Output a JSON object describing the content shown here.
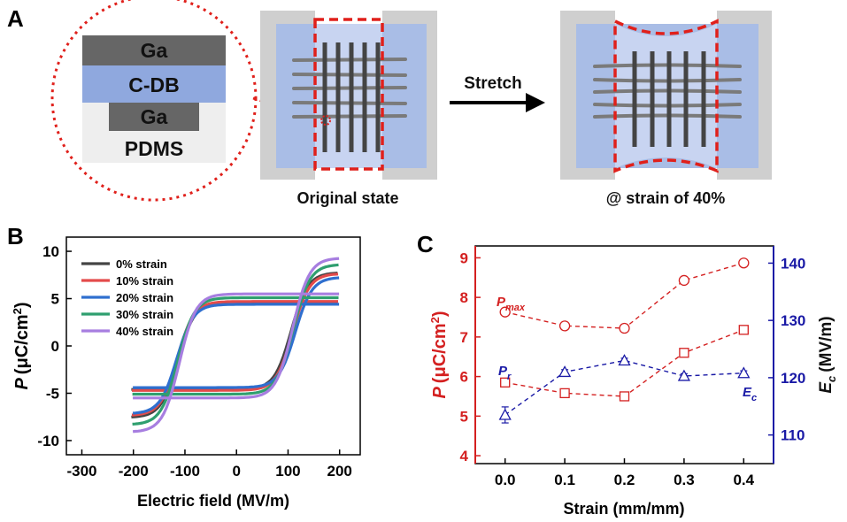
{
  "panel_a": {
    "letter": "A",
    "layers": [
      "Ga",
      "C-DB",
      "Ga",
      "PDMS"
    ],
    "arrow_label": "Stretch",
    "caption_left": "Original state",
    "caption_right": "@ strain of 40%",
    "colors": {
      "clamp": "#cfcfcf",
      "substrate": "#a9bde6",
      "c_db": "#8fa8de",
      "ga": "#666666",
      "pdms": "#eeeeee",
      "dashed": "#e0201b"
    }
  },
  "panel_b": {
    "letter": "B",
    "legend": [
      "0% strain",
      "10% strain",
      "20% strain",
      "30% strain",
      "40% strain"
    ]
  },
  "panel_c": {
    "letter": "C",
    "label_pmax_main": "P",
    "label_pmax_sub": "max",
    "label_pr_main": "P",
    "label_pr_sub": "r",
    "label_ec_main": "E",
    "label_ec_sub": "c"
  },
  "chart_data": [
    {
      "id": "B",
      "type": "line",
      "xlabel": "Electric field (MV/m)",
      "ylabel_main": "P",
      "ylabel_unit": "(μC/cm",
      "ylabel_sup": "2",
      "ylabel_close": ")",
      "xlim": [
        -330,
        240
      ],
      "ylim": [
        -11.5,
        11.5
      ],
      "xticks": [
        -300,
        -200,
        -100,
        0,
        100,
        200
      ],
      "yticks": [
        -10,
        -5,
        0,
        5,
        10
      ],
      "series": [
        {
          "name": "0% strain",
          "color": "#444444",
          "vmax": 8.0,
          "vmin": -7.8,
          "pr": 4.6,
          "ec": 110,
          "emax": 192
        },
        {
          "name": "10% strain",
          "color": "#e34b4b",
          "vmax": 7.9,
          "vmin": -7.6,
          "pr": 4.7,
          "ec": 112,
          "emax": 194
        },
        {
          "name": "20% strain",
          "color": "#2f6fcf",
          "vmax": 7.5,
          "vmin": -7.4,
          "pr": 4.4,
          "ec": 115,
          "emax": 198
        },
        {
          "name": "30% strain",
          "color": "#2f9f6f",
          "vmax": 8.9,
          "vmin": -8.6,
          "pr": 5.1,
          "ec": 112,
          "emax": 196
        },
        {
          "name": "40% strain",
          "color": "#a77ee0",
          "vmax": 9.6,
          "vmin": -9.4,
          "pr": 5.5,
          "ec": 110,
          "emax": 198
        }
      ]
    },
    {
      "id": "C",
      "type": "line",
      "xlabel": "Strain (mm/mm)",
      "ylabel_left_main": "P",
      "ylabel_left_unit": "(μC/cm",
      "ylabel_left_sup": "2",
      "ylabel_left_close": ")",
      "ylabel_right_main": "E",
      "ylabel_right_sub": "c",
      "ylabel_right_unit": "(MV/m)",
      "x": [
        0.0,
        0.1,
        0.2,
        0.3,
        0.4
      ],
      "xlim": [
        -0.05,
        0.45
      ],
      "xticks": [
        "0.0",
        "0.1",
        "0.2",
        "0.3",
        "0.4"
      ],
      "ylim_left": [
        3.8,
        9.3
      ],
      "yticks_left": [
        4,
        5,
        6,
        7,
        8,
        9
      ],
      "ylim_right": [
        105,
        143
      ],
      "yticks_right": [
        110,
        120,
        130,
        140
      ],
      "series": [
        {
          "name": "Pmax",
          "axis": "left",
          "marker": "circle",
          "color": "#d42020",
          "values": [
            7.63,
            7.28,
            7.22,
            8.43,
            8.87
          ],
          "err": [
            0.08,
            0.08,
            0.08,
            0.08,
            0.08
          ]
        },
        {
          "name": "Pr",
          "axis": "left",
          "marker": "square",
          "color": "#d42020",
          "values": [
            5.85,
            5.58,
            5.5,
            6.6,
            7.18
          ],
          "err": [
            0.09,
            0.08,
            0.08,
            0.08,
            0.09
          ]
        },
        {
          "name": "Ec",
          "axis": "right",
          "marker": "triangle",
          "color": "#1a1aa6",
          "values": [
            113.5,
            121.0,
            123.0,
            120.3,
            120.8
          ],
          "err": [
            1.4,
            0.4,
            0.4,
            0.4,
            0.4
          ]
        }
      ]
    }
  ]
}
